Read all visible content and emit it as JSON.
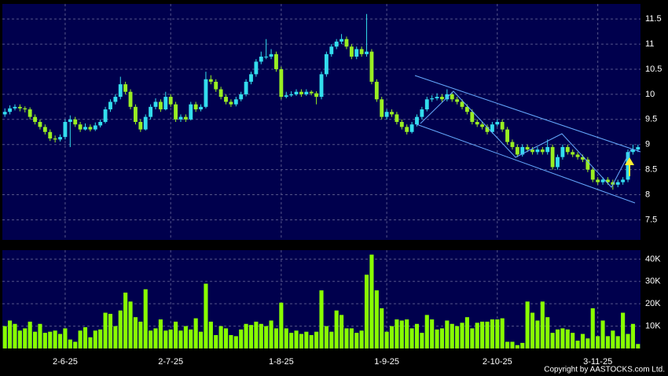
{
  "chart_data": [
    {
      "type": "candlestick",
      "categories": [
        null,
        null,
        null,
        null,
        null,
        null,
        null,
        null,
        null,
        null,
        null,
        null,
        "2-6-25",
        null,
        null,
        null,
        null,
        null,
        null,
        null,
        null,
        null,
        null,
        null,
        null,
        null,
        null,
        null,
        null,
        null,
        null,
        null,
        null,
        "2-7-25",
        null,
        null,
        null,
        null,
        null,
        null,
        null,
        null,
        null,
        null,
        null,
        null,
        null,
        null,
        null,
        null,
        null,
        null,
        null,
        null,
        null,
        "1-8-25",
        null,
        null,
        null,
        null,
        null,
        null,
        null,
        null,
        null,
        null,
        null,
        null,
        null,
        null,
        null,
        null,
        null,
        null,
        null,
        null,
        "1-9-25",
        null,
        null,
        null,
        null,
        null,
        null,
        null,
        null,
        null,
        null,
        null,
        null,
        null,
        null,
        null,
        null,
        null,
        null,
        null,
        null,
        null,
        "2-10-25",
        null,
        null,
        null,
        null,
        null,
        null,
        null,
        null,
        null,
        null,
        null,
        null,
        null,
        null,
        null,
        null,
        null,
        null,
        null,
        "3-11-25",
        null,
        null,
        null,
        null,
        null,
        null,
        null,
        null
      ],
      "ohlc": [
        [
          9.6,
          9.72,
          9.55,
          9.65
        ],
        [
          9.65,
          9.78,
          9.6,
          9.72
        ],
        [
          9.72,
          9.8,
          9.68,
          9.75
        ],
        [
          9.75,
          9.8,
          9.66,
          9.72
        ],
        [
          9.72,
          9.76,
          9.64,
          9.7
        ],
        [
          9.7,
          9.74,
          9.5,
          9.55
        ],
        [
          9.55,
          9.6,
          9.4,
          9.45
        ],
        [
          9.45,
          9.5,
          9.3,
          9.35
        ],
        [
          9.35,
          9.4,
          9.2,
          9.25
        ],
        [
          9.25,
          9.3,
          9.07,
          9.12
        ],
        [
          9.12,
          9.18,
          9.04,
          9.1
        ],
        [
          9.1,
          9.2,
          9.06,
          9.15
        ],
        [
          9.15,
          9.5,
          9.1,
          9.45
        ],
        [
          9.45,
          9.58,
          8.95,
          9.5
        ],
        [
          9.5,
          9.55,
          9.35,
          9.4
        ],
        [
          9.4,
          9.45,
          9.25,
          9.3
        ],
        [
          9.3,
          9.42,
          9.28,
          9.35
        ],
        [
          9.35,
          9.4,
          9.26,
          9.3
        ],
        [
          9.3,
          9.44,
          9.27,
          9.38
        ],
        [
          9.38,
          9.5,
          9.34,
          9.45
        ],
        [
          9.45,
          9.75,
          9.42,
          9.7
        ],
        [
          9.7,
          9.9,
          9.65,
          9.85
        ],
        [
          9.85,
          10.0,
          9.8,
          9.95
        ],
        [
          9.95,
          10.35,
          9.9,
          10.2
        ],
        [
          10.2,
          10.25,
          10.0,
          10.05
        ],
        [
          10.05,
          10.1,
          9.7,
          9.75
        ],
        [
          9.75,
          9.8,
          9.4,
          9.45
        ],
        [
          9.45,
          9.5,
          9.25,
          9.3
        ],
        [
          9.3,
          9.6,
          9.28,
          9.55
        ],
        [
          9.55,
          9.8,
          9.5,
          9.75
        ],
        [
          9.75,
          9.92,
          9.7,
          9.85
        ],
        [
          9.85,
          9.9,
          9.65,
          9.7
        ],
        [
          9.7,
          10.05,
          9.68,
          9.95
        ],
        [
          9.95,
          10.0,
          9.75,
          9.8
        ],
        [
          9.8,
          9.85,
          9.45,
          9.5
        ],
        [
          9.5,
          9.6,
          9.45,
          9.55
        ],
        [
          9.55,
          9.6,
          9.45,
          9.5
        ],
        [
          9.5,
          9.85,
          9.48,
          9.8
        ],
        [
          9.8,
          9.85,
          9.65,
          9.7
        ],
        [
          9.7,
          9.8,
          9.66,
          9.75
        ],
        [
          9.75,
          10.45,
          9.72,
          10.3
        ],
        [
          10.3,
          10.38,
          10.2,
          10.25
        ],
        [
          10.25,
          10.3,
          10.05,
          10.1
        ],
        [
          10.1,
          10.15,
          9.9,
          9.95
        ],
        [
          9.95,
          10.0,
          9.8,
          9.85
        ],
        [
          9.85,
          9.9,
          9.75,
          9.8
        ],
        [
          9.8,
          9.95,
          9.76,
          9.9
        ],
        [
          9.9,
          10.05,
          9.86,
          10.0
        ],
        [
          10.0,
          10.3,
          9.96,
          10.25
        ],
        [
          10.25,
          10.45,
          10.2,
          10.4
        ],
        [
          10.4,
          10.7,
          10.35,
          10.65
        ],
        [
          10.65,
          10.85,
          10.6,
          10.75
        ],
        [
          10.75,
          11.1,
          10.7,
          10.75
        ],
        [
          10.75,
          10.9,
          10.7,
          10.8
        ],
        [
          10.8,
          10.85,
          10.45,
          10.5
        ],
        [
          10.5,
          10.55,
          9.9,
          9.95
        ],
        [
          9.95,
          10.05,
          9.92,
          9.98
        ],
        [
          9.98,
          10.06,
          9.95,
          10.0
        ],
        [
          10.0,
          10.1,
          9.97,
          10.05
        ],
        [
          10.05,
          10.1,
          9.95,
          10.0
        ],
        [
          10.0,
          10.1,
          9.97,
          10.05
        ],
        [
          10.05,
          10.08,
          9.98,
          10.02
        ],
        [
          10.02,
          10.06,
          9.8,
          9.95
        ],
        [
          9.95,
          10.45,
          9.9,
          10.4
        ],
        [
          10.4,
          10.85,
          10.35,
          10.8
        ],
        [
          10.8,
          11.0,
          10.75,
          10.95
        ],
        [
          10.95,
          11.1,
          10.9,
          11.05
        ],
        [
          11.05,
          11.2,
          11.0,
          11.1
        ],
        [
          11.1,
          11.15,
          10.9,
          10.95
        ],
        [
          10.95,
          11.0,
          10.7,
          10.75
        ],
        [
          10.75,
          10.95,
          10.7,
          10.9
        ],
        [
          10.9,
          10.95,
          10.75,
          10.8
        ],
        [
          10.8,
          11.6,
          10.75,
          10.85
        ],
        [
          10.85,
          10.9,
          10.2,
          10.25
        ],
        [
          10.25,
          10.3,
          9.85,
          9.9
        ],
        [
          9.9,
          9.95,
          9.5,
          9.55
        ],
        [
          9.55,
          9.7,
          9.5,
          9.65
        ],
        [
          9.65,
          9.7,
          9.55,
          9.6
        ],
        [
          9.6,
          9.65,
          9.4,
          9.45
        ],
        [
          9.45,
          9.5,
          9.3,
          9.35
        ],
        [
          9.35,
          9.4,
          9.2,
          9.25
        ],
        [
          9.25,
          9.45,
          9.22,
          9.4
        ],
        [
          9.4,
          9.6,
          9.36,
          9.55
        ],
        [
          9.55,
          9.75,
          9.5,
          9.7
        ],
        [
          9.7,
          9.95,
          9.66,
          9.9
        ],
        [
          9.9,
          9.98,
          9.85,
          9.92
        ],
        [
          9.92,
          10.02,
          9.88,
          9.95
        ],
        [
          9.95,
          10.0,
          9.85,
          9.9
        ],
        [
          9.9,
          10.1,
          9.86,
          10.0
        ],
        [
          10.0,
          10.05,
          9.85,
          9.9
        ],
        [
          9.9,
          9.95,
          9.8,
          9.85
        ],
        [
          9.85,
          9.9,
          9.7,
          9.75
        ],
        [
          9.75,
          9.8,
          9.6,
          9.65
        ],
        [
          9.65,
          9.7,
          9.4,
          9.45
        ],
        [
          9.45,
          9.5,
          9.35,
          9.4
        ],
        [
          9.4,
          9.45,
          9.3,
          9.35
        ],
        [
          9.35,
          9.4,
          9.2,
          9.25
        ],
        [
          9.25,
          9.45,
          9.22,
          9.4
        ],
        [
          9.4,
          9.5,
          9.36,
          9.45
        ],
        [
          9.45,
          9.5,
          9.25,
          9.3
        ],
        [
          9.3,
          9.35,
          9.0,
          9.05
        ],
        [
          9.05,
          9.1,
          8.9,
          8.95
        ],
        [
          8.95,
          9.0,
          8.75,
          8.8
        ],
        [
          8.8,
          9.0,
          8.76,
          8.95
        ],
        [
          8.95,
          9.0,
          8.85,
          8.9
        ],
        [
          8.9,
          8.95,
          8.8,
          8.85
        ],
        [
          8.85,
          8.95,
          8.8,
          8.9
        ],
        [
          8.9,
          8.95,
          8.8,
          8.85
        ],
        [
          8.85,
          9.1,
          8.8,
          8.95
        ],
        [
          8.95,
          9.0,
          8.5,
          8.55
        ],
        [
          8.55,
          8.8,
          8.5,
          8.75
        ],
        [
          8.75,
          9.0,
          8.7,
          8.95
        ],
        [
          8.95,
          9.0,
          8.8,
          8.85
        ],
        [
          8.85,
          8.9,
          8.75,
          8.8
        ],
        [
          8.8,
          8.85,
          8.7,
          8.75
        ],
        [
          8.75,
          8.8,
          8.65,
          8.7
        ],
        [
          8.7,
          8.75,
          8.45,
          8.5
        ],
        [
          8.5,
          8.55,
          8.25,
          8.3
        ],
        [
          8.3,
          8.35,
          8.2,
          8.25
        ],
        [
          8.25,
          8.35,
          8.2,
          8.3
        ],
        [
          8.3,
          8.35,
          8.2,
          8.25
        ],
        [
          8.25,
          8.3,
          8.1,
          8.2
        ],
        [
          8.2,
          8.3,
          8.15,
          8.25
        ],
        [
          8.25,
          8.35,
          8.2,
          8.3
        ],
        [
          8.3,
          8.9,
          8.25,
          8.85
        ],
        [
          8.85,
          9.0,
          8.8,
          8.9
        ],
        [
          8.9,
          9.0,
          8.85,
          8.95
        ]
      ],
      "up_color": "#33ddee",
      "down_color": "#99ee22",
      "ylim": [
        7.1,
        11.8
      ],
      "yticks": [
        7.5,
        8,
        8.5,
        9,
        9.5,
        10,
        10.5,
        11,
        11.5
      ],
      "grid": true
    },
    {
      "type": "bar",
      "values": [
        10000,
        12500,
        11000,
        8000,
        9000,
        12000,
        7500,
        11000,
        7000,
        7500,
        8000,
        6500,
        9000,
        4000,
        3000,
        8000,
        9500,
        5000,
        8000,
        8500,
        16000,
        15500,
        10000,
        17000,
        25000,
        21000,
        14000,
        12000,
        26500,
        8000,
        9000,
        13000,
        8000,
        8500,
        12000,
        8000,
        10000,
        8500,
        13500,
        7500,
        29000,
        12000,
        6000,
        10000,
        9000,
        6000,
        5500,
        8500,
        11000,
        10500,
        12000,
        11000,
        10000,
        12500,
        9000,
        20500,
        9000,
        7000,
        8000,
        6500,
        7500,
        6000,
        7500,
        26000,
        10000,
        7500,
        17000,
        15000,
        9000,
        9000,
        7000,
        8000,
        33000,
        42000,
        26000,
        18000,
        7500,
        10000,
        13000,
        12500,
        13000,
        9000,
        11000,
        7000,
        15000,
        13000,
        8500,
        9000,
        12500,
        11000,
        10000,
        11500,
        14000,
        9000,
        11500,
        12000,
        12000,
        13000,
        13000,
        13500,
        3000,
        3000,
        1500,
        2500,
        21000,
        16000,
        12500,
        21000,
        14000,
        7000,
        8500,
        9000,
        8500,
        7000,
        3500,
        6500,
        4500,
        18000,
        5500,
        12500,
        5500,
        8000,
        5500,
        16000,
        6500,
        11000,
        2000
      ],
      "color": "#88ff00",
      "ylim": [
        0,
        44000
      ],
      "yticks": [
        {
          "value": 10000,
          "label": "10K"
        },
        {
          "value": 20000,
          "label": "20K"
        },
        {
          "value": 30000,
          "label": "30K"
        },
        {
          "value": 40000,
          "label": "40K"
        }
      ],
      "grid": true,
      "annotation": "Copyright by AASTOCKS.com Ltd."
    }
  ]
}
